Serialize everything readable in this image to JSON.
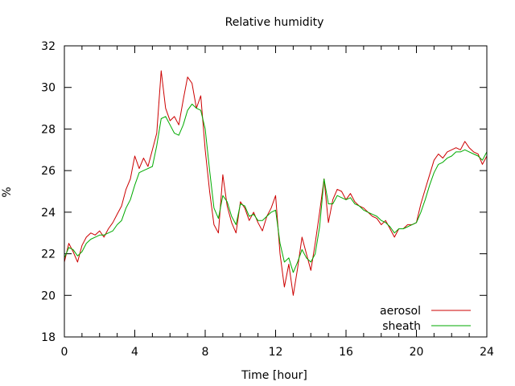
{
  "chart_data": {
    "type": "line",
    "title": "Relative humidity",
    "xlabel": "Time [hour]",
    "ylabel": "%",
    "xlim": [
      0,
      24
    ],
    "ylim": [
      18,
      32
    ],
    "x_ticks": [
      "0",
      "4",
      "8",
      "12",
      "16",
      "20",
      "24"
    ],
    "y_ticks": [
      "18",
      "20",
      "22",
      "24",
      "26",
      "28",
      "30",
      "32"
    ],
    "grid": false,
    "legend_position": "bottom-right",
    "series": [
      {
        "name": "aerosol",
        "color": "#cc0000",
        "x": [
          0,
          0.25,
          0.5,
          0.75,
          1,
          1.25,
          1.5,
          1.75,
          2,
          2.25,
          2.5,
          2.75,
          3,
          3.25,
          3.5,
          3.75,
          4,
          4.25,
          4.5,
          4.75,
          5,
          5.25,
          5.5,
          5.75,
          6,
          6.25,
          6.5,
          6.75,
          7,
          7.25,
          7.5,
          7.75,
          8,
          8.25,
          8.5,
          8.75,
          9,
          9.25,
          9.5,
          9.75,
          10,
          10.25,
          10.5,
          10.75,
          11,
          11.25,
          11.5,
          11.75,
          12,
          12.25,
          12.5,
          12.75,
          13,
          13.25,
          13.5,
          13.75,
          14,
          14.25,
          14.5,
          14.75,
          15,
          15.25,
          15.5,
          15.75,
          16,
          16.25,
          16.5,
          16.75,
          17,
          17.25,
          17.5,
          17.75,
          18,
          18.25,
          18.5,
          18.75,
          19,
          19.25,
          19.5,
          19.75,
          20,
          20.25,
          20.5,
          20.75,
          21,
          21.25,
          21.5,
          21.75,
          22,
          22.25,
          22.5,
          22.75,
          23,
          23.25,
          23.5,
          23.75,
          24
        ],
        "values": [
          21.6,
          22.5,
          22.1,
          21.6,
          22.4,
          22.8,
          23.0,
          22.9,
          23.1,
          22.8,
          23.2,
          23.5,
          23.9,
          24.3,
          25.1,
          25.6,
          26.7,
          26.1,
          26.6,
          26.2,
          27.0,
          27.8,
          30.8,
          29.0,
          28.4,
          28.6,
          28.2,
          29.4,
          30.5,
          30.2,
          29.0,
          29.6,
          27.0,
          25.0,
          23.4,
          23.0,
          25.8,
          24.3,
          23.5,
          23.0,
          24.5,
          24.2,
          23.6,
          24.0,
          23.5,
          23.1,
          23.8,
          24.2,
          24.8,
          22.0,
          20.4,
          21.5,
          20.0,
          21.3,
          22.8,
          22.0,
          21.2,
          22.5,
          24.0,
          25.6,
          23.5,
          24.6,
          25.1,
          25.0,
          24.6,
          24.9,
          24.5,
          24.3,
          24.2,
          24.0,
          23.8,
          23.7,
          23.4,
          23.6,
          23.2,
          22.8,
          23.2,
          23.2,
          23.4,
          23.4,
          23.5,
          24.4,
          25.1,
          25.8,
          26.5,
          26.8,
          26.6,
          26.9,
          27.0,
          27.1,
          27.0,
          27.4,
          27.1,
          26.9,
          26.8,
          26.3,
          26.7
        ]
      },
      {
        "name": "sheath",
        "color": "#00aa00",
        "x": [
          0,
          0.25,
          0.5,
          0.75,
          1,
          1.25,
          1.5,
          1.75,
          2,
          2.25,
          2.5,
          2.75,
          3,
          3.25,
          3.5,
          3.75,
          4,
          4.25,
          4.5,
          4.75,
          5,
          5.25,
          5.5,
          5.75,
          6,
          6.25,
          6.5,
          6.75,
          7,
          7.25,
          7.5,
          7.75,
          8,
          8.25,
          8.5,
          8.75,
          9,
          9.25,
          9.5,
          9.75,
          10,
          10.25,
          10.5,
          10.75,
          11,
          11.25,
          11.5,
          11.75,
          12,
          12.25,
          12.5,
          12.75,
          13,
          13.25,
          13.5,
          13.75,
          14,
          14.25,
          14.5,
          14.75,
          15,
          15.25,
          15.5,
          15.75,
          16,
          16.25,
          16.5,
          16.75,
          17,
          17.25,
          17.5,
          17.75,
          18,
          18.25,
          18.5,
          18.75,
          19,
          19.25,
          19.5,
          19.75,
          20,
          20.25,
          20.5,
          20.75,
          21,
          21.25,
          21.5,
          21.75,
          22,
          22.25,
          22.5,
          22.75,
          23,
          23.25,
          23.5,
          23.75,
          24
        ],
        "values": [
          21.8,
          22.3,
          22.2,
          21.9,
          22.1,
          22.5,
          22.7,
          22.8,
          22.9,
          22.9,
          23.0,
          23.1,
          23.4,
          23.6,
          24.2,
          24.6,
          25.3,
          25.9,
          26.0,
          26.1,
          26.2,
          27.2,
          28.5,
          28.6,
          28.2,
          27.8,
          27.7,
          28.2,
          28.9,
          29.2,
          29.0,
          28.9,
          28.0,
          26.0,
          24.2,
          23.7,
          24.8,
          24.5,
          23.8,
          23.4,
          24.4,
          24.3,
          23.8,
          23.9,
          23.6,
          23.6,
          23.8,
          24.0,
          24.1,
          22.5,
          21.6,
          21.8,
          21.1,
          21.6,
          22.2,
          21.8,
          21.6,
          22.0,
          23.3,
          25.6,
          24.4,
          24.4,
          24.8,
          24.7,
          24.6,
          24.7,
          24.4,
          24.3,
          24.1,
          24.0,
          23.9,
          23.8,
          23.6,
          23.5,
          23.3,
          23.0,
          23.2,
          23.2,
          23.3,
          23.4,
          23.5,
          24.0,
          24.6,
          25.3,
          25.9,
          26.3,
          26.4,
          26.6,
          26.7,
          26.9,
          26.9,
          27.0,
          26.9,
          26.8,
          26.7,
          26.5,
          26.9
        ]
      }
    ]
  }
}
